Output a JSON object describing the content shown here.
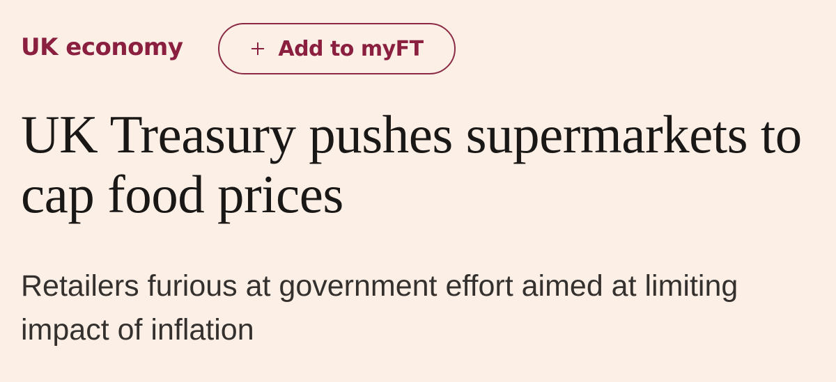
{
  "topic": "UK economy",
  "follow_button": "Add to myFT",
  "headline": "UK Treasury pushes supermarkets to cap food prices",
  "standfirst": "Retailers furious at government effort aimed at limiting impact of inflation"
}
